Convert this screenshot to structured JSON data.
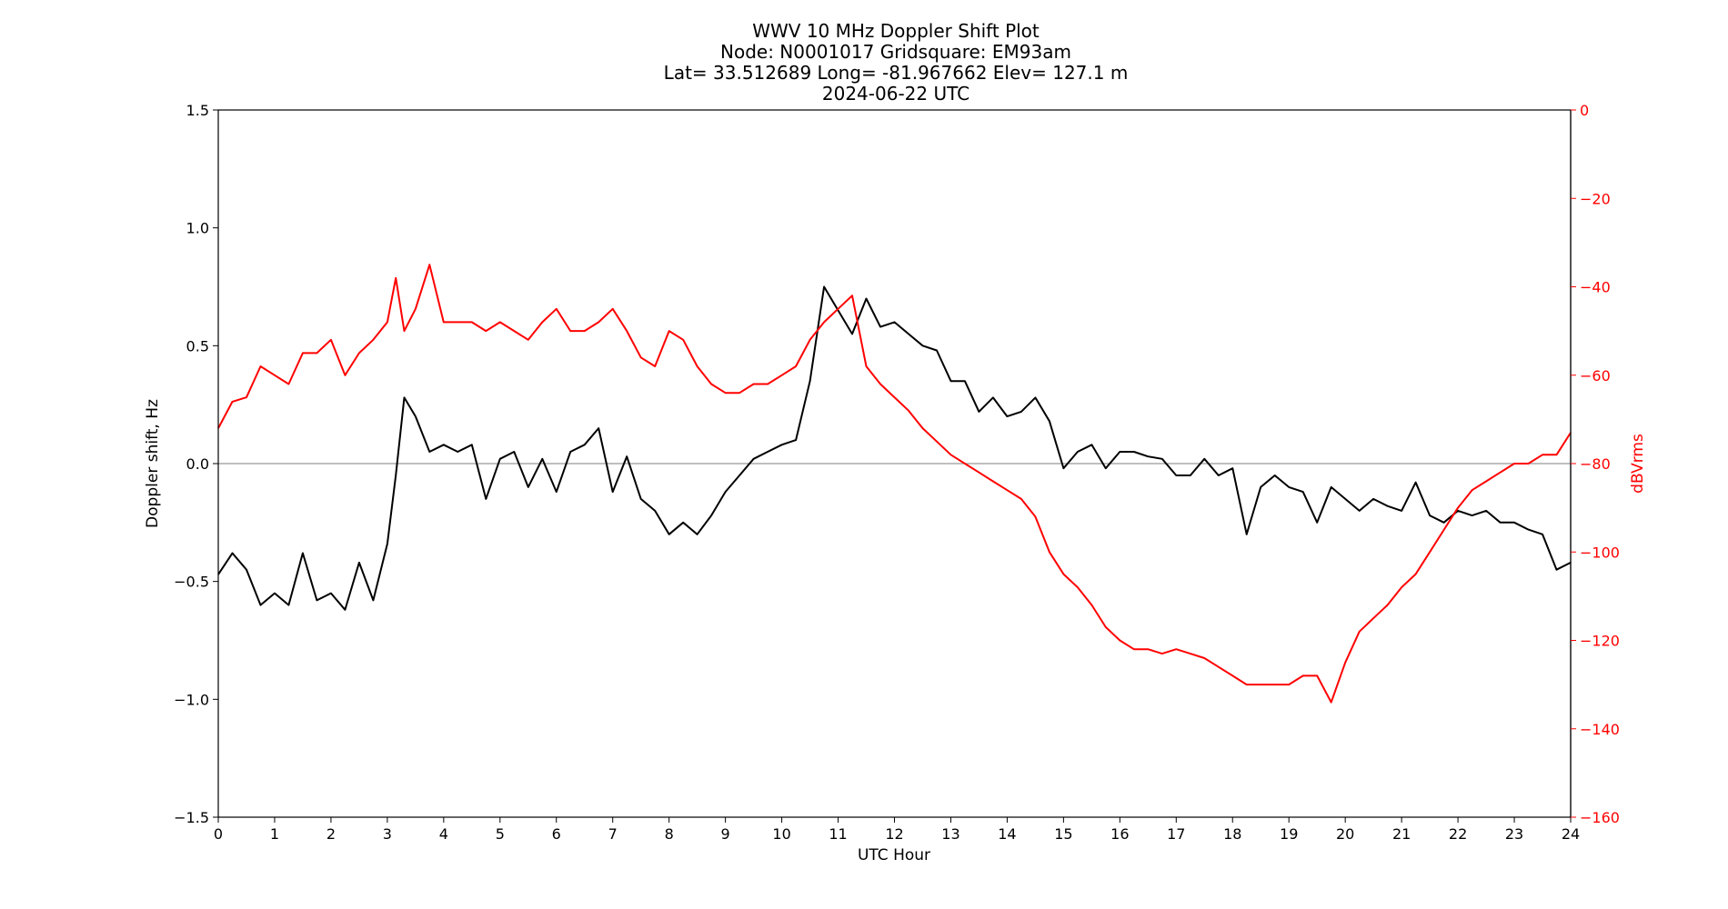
{
  "chart_data": {
    "type": "line",
    "title_lines": [
      "WWV 10 MHz Doppler Shift Plot",
      "Node:  N0001017     Gridsquare:  EM93am",
      "Lat= 33.512689    Long= -81.967662    Elev= 127.1 m",
      "2024-06-22  UTC"
    ],
    "xlabel": "UTC Hour",
    "ylabel_left": "Doppler shift, Hz",
    "ylabel_right": "dBVrms",
    "xlim": [
      0,
      24
    ],
    "ylim_left": [
      -1.5,
      1.5
    ],
    "ylim_right": [
      -160,
      0
    ],
    "x_ticks": [
      "0",
      "1",
      "2",
      "3",
      "4",
      "5",
      "6",
      "7",
      "8",
      "9",
      "10",
      "11",
      "12",
      "13",
      "14",
      "15",
      "16",
      "17",
      "18",
      "19",
      "20",
      "21",
      "22",
      "23",
      "24"
    ],
    "y_left_ticks": [
      "1.5",
      "1.0",
      "0.5",
      "0.0",
      "−0.5",
      "−1.0",
      "−1.5"
    ],
    "y_left_tick_values": [
      1.5,
      1.0,
      0.5,
      0.0,
      -0.5,
      -1.0,
      -1.5
    ],
    "y_right_ticks": [
      "0",
      "−20",
      "−40",
      "−60",
      "−80",
      "−100",
      "−120",
      "−140",
      "−160"
    ],
    "y_right_tick_values": [
      0,
      -20,
      -40,
      -60,
      -80,
      -100,
      -120,
      -140,
      -160
    ],
    "zero_line": 0.0,
    "colors": {
      "doppler": "#000000",
      "power": "#ff0000",
      "zero_line": "#999999",
      "right_axis": "#ff0000"
    },
    "series": [
      {
        "axis": "left",
        "x": [
          0,
          0.25,
          0.5,
          0.75,
          1,
          1.25,
          1.5,
          1.75,
          2,
          2.25,
          2.5,
          2.75,
          3,
          3.15,
          3.3,
          3.5,
          3.75,
          4,
          4.25,
          4.5,
          4.75,
          5,
          5.25,
          5.5,
          5.75,
          6,
          6.25,
          6.5,
          6.75,
          7,
          7.25,
          7.5,
          7.75,
          8,
          8.25,
          8.5,
          8.75,
          9,
          9.25,
          9.5,
          9.75,
          10,
          10.25,
          10.5,
          10.75,
          11,
          11.25,
          11.5,
          11.75,
          12,
          12.25,
          12.5,
          12.75,
          13,
          13.25,
          13.5,
          13.75,
          14,
          14.25,
          14.5,
          14.75,
          15,
          15.25,
          15.5,
          15.75,
          16,
          16.25,
          16.5,
          16.75,
          17,
          17.25,
          17.5,
          17.75,
          18,
          18.25,
          18.5,
          18.75,
          19,
          19.25,
          19.5,
          19.75,
          20,
          20.25,
          20.5,
          20.75,
          21,
          21.25,
          21.5,
          21.75,
          22,
          22.25,
          22.5,
          22.75,
          23,
          23.25,
          23.5,
          23.75,
          24
        ],
        "values": [
          -0.47,
          -0.38,
          -0.45,
          -0.6,
          -0.55,
          -0.6,
          -0.38,
          -0.58,
          -0.55,
          -0.62,
          -0.42,
          -0.58,
          -0.34,
          -0.05,
          0.28,
          0.2,
          0.05,
          0.08,
          0.05,
          0.08,
          -0.15,
          0.02,
          0.05,
          -0.1,
          0.02,
          -0.12,
          0.05,
          0.08,
          0.15,
          -0.12,
          0.03,
          -0.15,
          -0.2,
          -0.3,
          -0.25,
          -0.3,
          -0.22,
          -0.12,
          -0.05,
          0.02,
          0.05,
          0.08,
          0.1,
          0.35,
          0.75,
          0.65,
          0.55,
          0.7,
          0.58,
          0.6,
          0.55,
          0.5,
          0.48,
          0.35,
          0.35,
          0.22,
          0.28,
          0.2,
          0.22,
          0.28,
          0.18,
          -0.02,
          0.05,
          0.08,
          -0.02,
          0.05,
          0.05,
          0.03,
          0.02,
          -0.05,
          -0.05,
          0.02,
          -0.05,
          -0.02,
          -0.3,
          -0.1,
          -0.05,
          -0.1,
          -0.12,
          -0.25,
          -0.1,
          -0.15,
          -0.2,
          -0.15,
          -0.18,
          -0.2,
          -0.08,
          -0.22,
          -0.25,
          -0.2,
          -0.22,
          -0.2,
          -0.25,
          -0.25,
          -0.28,
          -0.3,
          -0.45,
          -0.42
        ]
      },
      {
        "axis": "right",
        "x": [
          0,
          0.25,
          0.5,
          0.75,
          1,
          1.25,
          1.5,
          1.75,
          2,
          2.25,
          2.5,
          2.75,
          3,
          3.15,
          3.3,
          3.5,
          3.75,
          4,
          4.25,
          4.5,
          4.75,
          5,
          5.25,
          5.5,
          5.75,
          6,
          6.25,
          6.5,
          6.75,
          7,
          7.25,
          7.5,
          7.75,
          8,
          8.25,
          8.5,
          8.75,
          9,
          9.25,
          9.5,
          9.75,
          10,
          10.25,
          10.5,
          10.75,
          11,
          11.25,
          11.5,
          11.75,
          12,
          12.25,
          12.5,
          12.75,
          13,
          13.25,
          13.5,
          13.75,
          14,
          14.25,
          14.5,
          14.75,
          15,
          15.25,
          15.5,
          15.75,
          16,
          16.25,
          16.5,
          16.75,
          17,
          17.25,
          17.5,
          17.75,
          18,
          18.25,
          18.5,
          18.75,
          19,
          19.25,
          19.5,
          19.75,
          20,
          20.25,
          20.5,
          20.75,
          21,
          21.25,
          21.5,
          21.75,
          22,
          22.25,
          22.5,
          22.75,
          23,
          23.25,
          23.5,
          23.75,
          24
        ],
        "values": [
          -72,
          -66,
          -65,
          -58,
          -60,
          -62,
          -55,
          -55,
          -52,
          -60,
          -55,
          -52,
          -48,
          -38,
          -50,
          -45,
          -35,
          -48,
          -48,
          -48,
          -50,
          -48,
          -50,
          -52,
          -48,
          -45,
          -50,
          -50,
          -48,
          -45,
          -50,
          -56,
          -58,
          -50,
          -52,
          -58,
          -62,
          -64,
          -64,
          -62,
          -62,
          -60,
          -58,
          -52,
          -48,
          -45,
          -42,
          -58,
          -62,
          -65,
          -68,
          -72,
          -75,
          -78,
          -80,
          -82,
          -84,
          -86,
          -88,
          -92,
          -100,
          -105,
          -108,
          -112,
          -117,
          -120,
          -122,
          -122,
          -123,
          -122,
          -123,
          -124,
          -126,
          -128,
          -130,
          -130,
          -130,
          -130,
          -128,
          -128,
          -134,
          -125,
          -118,
          -115,
          -112,
          -108,
          -105,
          -100,
          -95,
          -90,
          -86,
          -84,
          -82,
          -80,
          -80,
          -78,
          -78,
          -73
        ]
      }
    ]
  }
}
